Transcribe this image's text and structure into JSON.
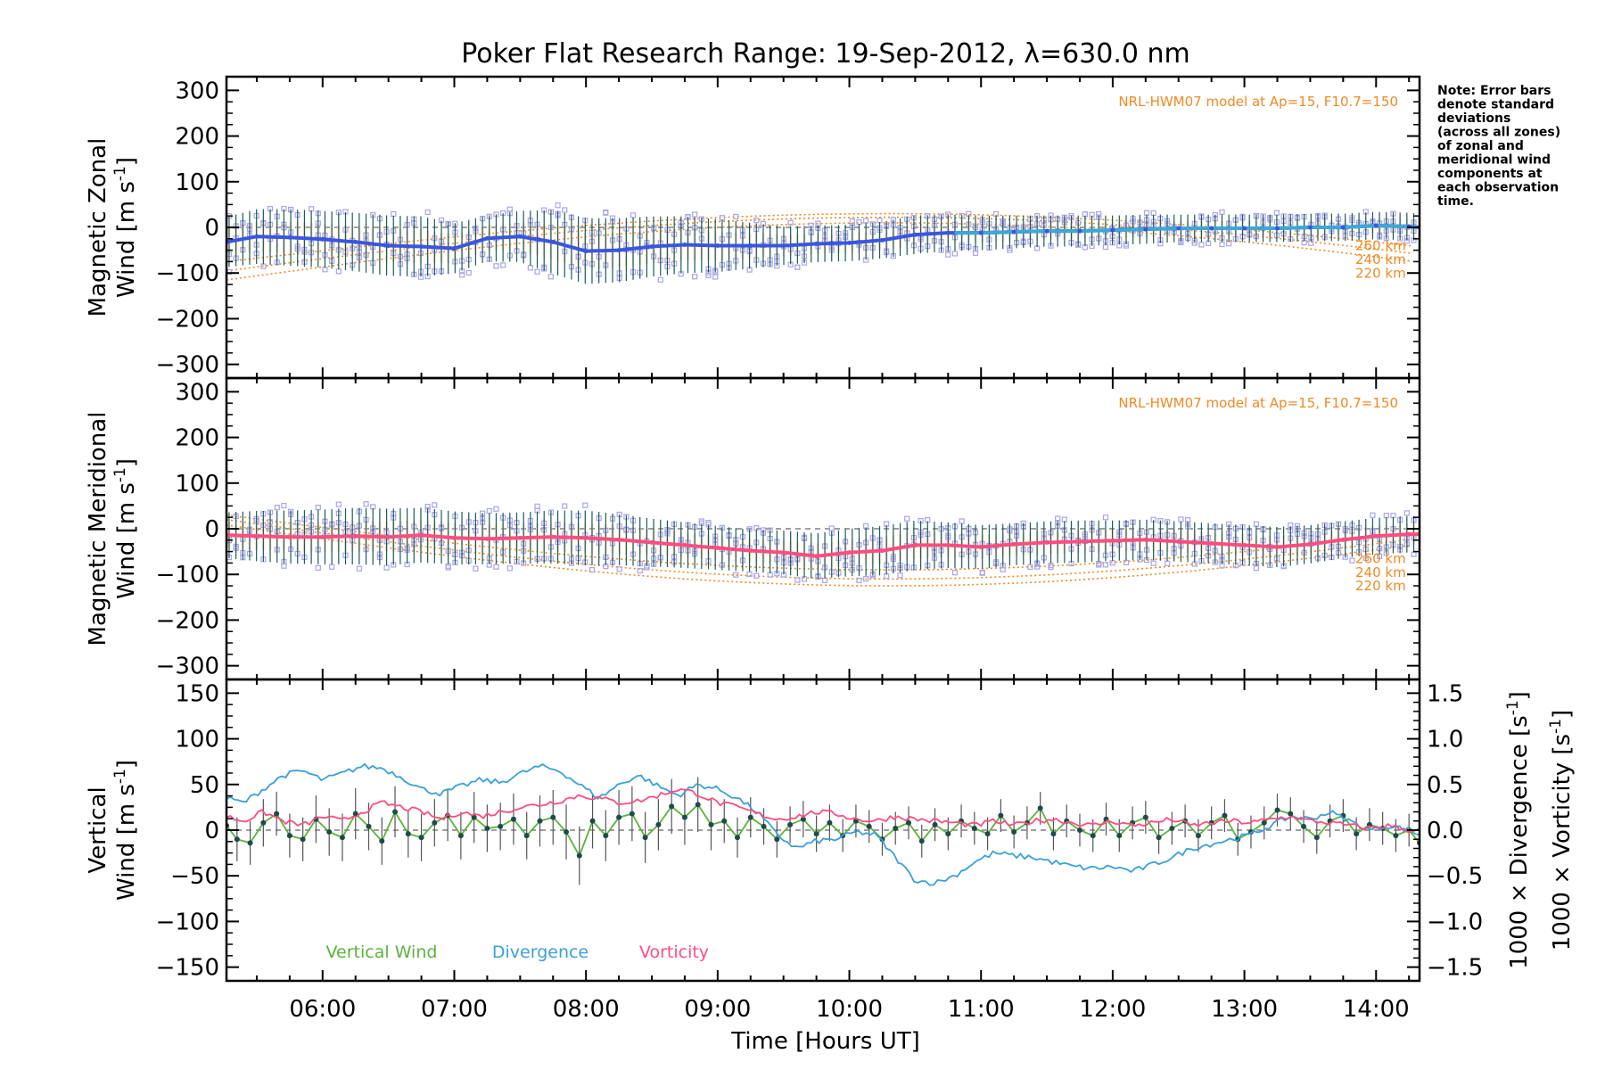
{
  "title": "Poker Flat Research Range: 19-Sep-2012, λ=630.0 nm",
  "note_lines": [
    "Note: Error bars",
    "denote standard",
    "deviations",
    "(across all zones)",
    "of zonal and",
    "meridional wind",
    "components at",
    "each observation",
    "time."
  ],
  "x_axis": {
    "label": "Time [Hours UT]",
    "range": [
      5.27,
      14.33
    ],
    "ticks": [
      {
        "v": 6,
        "label": "06:00"
      },
      {
        "v": 7,
        "label": "07:00"
      },
      {
        "v": 8,
        "label": "08:00"
      },
      {
        "v": 9,
        "label": "09:00"
      },
      {
        "v": 10,
        "label": "10:00"
      },
      {
        "v": 11,
        "label": "11:00"
      },
      {
        "v": 12,
        "label": "12:00"
      },
      {
        "v": 13,
        "label": "13:00"
      },
      {
        "v": 14,
        "label": "14:00"
      }
    ]
  },
  "colors": {
    "zonal": "#3a56e0",
    "zonal_late": "#3aa8d8",
    "meridional": "#ff4d80",
    "vertical": "#5ab43c",
    "divergence": "#3aa0d8",
    "vorticity": "#ff4d80",
    "model": "#f08a24",
    "scatter": "#a8a6e8",
    "errbar": "#1f5a5a"
  },
  "chart_data": [
    {
      "type": "line",
      "panel": "zonal",
      "ylabel_line1": "Magnetic Zonal",
      "ylabel_line2": "Wind [m s",
      "ylabel_sup": "-1",
      "ylabel_close": "]",
      "ylim": [
        -330,
        330
      ],
      "yticks": [
        300,
        200,
        100,
        0,
        -100,
        -200,
        -300
      ],
      "model_text": "NRL-HWM07 model at Ap=15, F10.7=150",
      "model_altitudes": [
        "260 km",
        "240 km",
        "220 km"
      ],
      "series": [
        {
          "x": [
            5.27,
            5.5,
            5.75,
            6.0,
            6.25,
            6.5,
            6.75,
            7.0,
            7.25,
            7.5,
            7.75,
            8.0,
            8.25,
            8.5,
            8.75,
            9.0,
            9.25,
            9.5,
            9.75,
            10.0,
            10.25,
            10.5,
            10.75,
            11.0,
            11.25,
            11.5,
            11.75,
            12.0,
            12.25,
            12.5,
            12.75,
            13.0,
            13.25,
            13.5,
            13.75,
            14.0,
            14.25,
            14.33
          ],
          "y": [
            -32,
            -20,
            -22,
            -26,
            -32,
            -40,
            -42,
            -46,
            -24,
            -20,
            -32,
            -52,
            -50,
            -42,
            -38,
            -40,
            -40,
            -40,
            -36,
            -34,
            -28,
            -16,
            -12,
            -12,
            -10,
            -8,
            -8,
            -6,
            -4,
            -2,
            -2,
            -2,
            -2,
            0,
            0,
            4,
            2,
            0
          ],
          "err": [
            55,
            60,
            62,
            62,
            64,
            66,
            66,
            55,
            50,
            56,
            70,
            72,
            70,
            66,
            62,
            58,
            50,
            42,
            40,
            40,
            40,
            42,
            40,
            38,
            36,
            34,
            34,
            32,
            32,
            30,
            30,
            30,
            30,
            30,
            30,
            30,
            30,
            30
          ]
        }
      ]
    },
    {
      "type": "line",
      "panel": "meridional",
      "ylabel_line1": "Magnetic Meridional",
      "ylabel_line2": "Wind [m s",
      "ylabel_sup": "-1",
      "ylabel_close": "]",
      "ylim": [
        -330,
        330
      ],
      "yticks": [
        300,
        200,
        100,
        0,
        -100,
        -200,
        -300
      ],
      "model_text": "NRL-HWM07 model at Ap=15, F10.7=150",
      "model_altitudes": [
        "260 km",
        "240 km",
        "220 km"
      ],
      "series": [
        {
          "x": [
            5.27,
            5.5,
            5.75,
            6.0,
            6.25,
            6.5,
            6.75,
            7.0,
            7.25,
            7.5,
            7.75,
            8.0,
            8.25,
            8.5,
            8.75,
            9.0,
            9.25,
            9.5,
            9.75,
            10.0,
            10.25,
            10.5,
            10.75,
            11.0,
            11.25,
            11.5,
            11.75,
            12.0,
            12.25,
            12.5,
            12.75,
            13.0,
            13.25,
            13.5,
            13.75,
            14.0,
            14.25,
            14.33
          ],
          "y": [
            -14,
            -16,
            -18,
            -18,
            -16,
            -18,
            -14,
            -20,
            -22,
            -20,
            -18,
            -20,
            -24,
            -30,
            -36,
            -42,
            -48,
            -52,
            -60,
            -52,
            -48,
            -36,
            -36,
            -40,
            -34,
            -30,
            -28,
            -26,
            -24,
            -28,
            -32,
            -36,
            -40,
            -34,
            -24,
            -16,
            -12,
            -12
          ],
          "err": [
            50,
            55,
            58,
            60,
            62,
            62,
            60,
            58,
            56,
            56,
            58,
            60,
            56,
            52,
            50,
            48,
            46,
            48,
            50,
            52,
            54,
            54,
            50,
            48,
            46,
            46,
            46,
            44,
            44,
            44,
            44,
            44,
            44,
            42,
            40,
            40,
            40,
            40
          ]
        }
      ]
    },
    {
      "type": "line",
      "panel": "vertical",
      "ylabel_line1": "Vertical",
      "ylabel_line2": "Wind [m s",
      "ylabel_sup": "-1",
      "ylabel_close": "]",
      "ylim": [
        -165,
        165
      ],
      "yticks": [
        150,
        100,
        50,
        0,
        -50,
        -100,
        -150
      ],
      "y2_ticks": [
        1.5,
        1.0,
        0.5,
        0.0,
        -0.5,
        -1.0,
        -1.5
      ],
      "y2_tick_labels": [
        "1.5",
        "1.0",
        "0.5",
        "0.0",
        "−0.5",
        "−1.0",
        "−1.5"
      ],
      "y2lim": [
        -1.65,
        1.65
      ],
      "y2label_div": "1000 × Divergence [s",
      "y2label_vor": "1000 × Vorticity [s",
      "y2label_sup": "-1",
      "y2label_close": "]",
      "legend": [
        "Vertical Wind",
        "Divergence",
        "Vorticity"
      ],
      "series": [
        {
          "name": "Vertical Wind",
          "x": [
            5.27,
            5.35,
            5.45,
            5.55,
            5.65,
            5.75,
            5.85,
            5.95,
            6.05,
            6.15,
            6.25,
            6.35,
            6.45,
            6.55,
            6.65,
            6.75,
            6.85,
            6.95,
            7.05,
            7.15,
            7.25,
            7.35,
            7.45,
            7.55,
            7.65,
            7.75,
            7.85,
            7.95,
            8.05,
            8.15,
            8.25,
            8.35,
            8.45,
            8.55,
            8.65,
            8.75,
            8.85,
            8.95,
            9.05,
            9.15,
            9.25,
            9.35,
            9.45,
            9.55,
            9.65,
            9.75,
            9.85,
            9.95,
            10.05,
            10.15,
            10.25,
            10.35,
            10.45,
            10.55,
            10.65,
            10.75,
            10.85,
            10.95,
            11.05,
            11.15,
            11.25,
            11.35,
            11.45,
            11.55,
            11.65,
            11.75,
            11.85,
            11.95,
            12.05,
            12.15,
            12.25,
            12.35,
            12.45,
            12.55,
            12.65,
            12.75,
            12.85,
            12.95,
            13.05,
            13.15,
            13.25,
            13.35,
            13.45,
            13.55,
            13.65,
            13.75,
            13.85,
            13.95,
            14.05,
            14.15,
            14.25,
            14.33
          ],
          "y": [
            5,
            -10,
            -14,
            8,
            18,
            -6,
            -10,
            12,
            -2,
            -8,
            18,
            4,
            -12,
            20,
            -4,
            -8,
            8,
            16,
            -6,
            14,
            2,
            4,
            12,
            -6,
            10,
            14,
            -2,
            -28,
            10,
            -6,
            14,
            18,
            -8,
            6,
            26,
            14,
            28,
            6,
            10,
            -8,
            14,
            4,
            -10,
            6,
            12,
            -4,
            8,
            -6,
            10,
            4,
            -10,
            2,
            8,
            -12,
            6,
            -4,
            10,
            2,
            -4,
            16,
            -2,
            8,
            24,
            -4,
            10,
            0,
            -6,
            12,
            -6,
            8,
            14,
            -8,
            2,
            10,
            -6,
            8,
            16,
            -10,
            -2,
            8,
            22,
            18,
            4,
            -8,
            10,
            16,
            -4,
            6,
            2,
            -6,
            0,
            -14
          ],
          "err": [
            22,
            24,
            24,
            26,
            24,
            24,
            24,
            26,
            26,
            26,
            28,
            26,
            26,
            28,
            26,
            26,
            26,
            28,
            26,
            28,
            26,
            26,
            28,
            26,
            28,
            30,
            30,
            32,
            30,
            28,
            30,
            30,
            28,
            28,
            30,
            30,
            30,
            28,
            24,
            22,
            22,
            20,
            20,
            20,
            20,
            20,
            20,
            18,
            18,
            18,
            18,
            18,
            18,
            18,
            18,
            18,
            18,
            18,
            18,
            18,
            18,
            18,
            18,
            18,
            18,
            18,
            18,
            18,
            18,
            18,
            18,
            18,
            18,
            18,
            18,
            18,
            18,
            18,
            18,
            18,
            18,
            18,
            18,
            18,
            18,
            18,
            18,
            18,
            18,
            18,
            18,
            18
          ]
        },
        {
          "name": "Divergence",
          "x": [
            5.27,
            5.4,
            5.55,
            5.7,
            5.85,
            6.0,
            6.15,
            6.3,
            6.45,
            6.6,
            6.75,
            6.9,
            7.05,
            7.2,
            7.35,
            7.5,
            7.65,
            7.8,
            7.95,
            8.1,
            8.25,
            8.4,
            8.55,
            8.7,
            8.85,
            9.0,
            9.15,
            9.3,
            9.45,
            9.6,
            9.75,
            9.9,
            10.05,
            10.2,
            10.35,
            10.5,
            10.65,
            10.8,
            10.95,
            11.1,
            11.25,
            11.4,
            11.55,
            11.7,
            11.85,
            12.0,
            12.15,
            12.3,
            12.45,
            12.6,
            12.75,
            12.9,
            13.05,
            13.2,
            13.35,
            13.5,
            13.65,
            13.8,
            13.95,
            14.1,
            14.25,
            14.33
          ],
          "y": [
            0.35,
            0.3,
            0.45,
            0.6,
            0.65,
            0.55,
            0.62,
            0.7,
            0.68,
            0.58,
            0.45,
            0.4,
            0.48,
            0.55,
            0.52,
            0.62,
            0.7,
            0.65,
            0.5,
            0.35,
            0.5,
            0.6,
            0.48,
            0.38,
            0.5,
            0.45,
            0.35,
            0.2,
            -0.05,
            -0.2,
            -0.12,
            -0.1,
            -0.02,
            -0.05,
            -0.3,
            -0.55,
            -0.58,
            -0.5,
            -0.35,
            -0.25,
            -0.28,
            -0.3,
            -0.35,
            -0.4,
            -0.42,
            -0.4,
            -0.45,
            -0.38,
            -0.3,
            -0.2,
            -0.15,
            -0.1,
            -0.05,
            0.05,
            0.15,
            0.12,
            0.2,
            0.1,
            0.0,
            0.05,
            0.0,
            -0.05
          ]
        },
        {
          "name": "Vorticity",
          "x": [
            5.27,
            5.4,
            5.55,
            5.7,
            5.85,
            6.0,
            6.15,
            6.3,
            6.45,
            6.6,
            6.75,
            6.9,
            7.05,
            7.2,
            7.35,
            7.5,
            7.65,
            7.8,
            7.95,
            8.1,
            8.25,
            8.4,
            8.55,
            8.7,
            8.85,
            9.0,
            9.15,
            9.3,
            9.45,
            9.6,
            9.75,
            9.9,
            10.05,
            10.2,
            10.35,
            10.5,
            10.65,
            10.8,
            10.95,
            11.1,
            11.25,
            11.4,
            11.55,
            11.7,
            11.85,
            12.0,
            12.15,
            12.3,
            12.45,
            12.6,
            12.75,
            12.9,
            13.05,
            13.2,
            13.35,
            13.5,
            13.65,
            13.8,
            13.95,
            14.1,
            14.25,
            14.33
          ],
          "y": [
            0.15,
            0.1,
            0.2,
            0.1,
            0.05,
            0.15,
            0.1,
            0.2,
            0.3,
            0.25,
            0.2,
            0.12,
            0.2,
            0.15,
            0.2,
            0.25,
            0.28,
            0.32,
            0.38,
            0.35,
            0.3,
            0.32,
            0.38,
            0.45,
            0.4,
            0.3,
            0.25,
            0.18,
            0.12,
            0.15,
            0.2,
            0.18,
            0.12,
            0.1,
            0.15,
            0.12,
            0.1,
            0.08,
            0.05,
            0.1,
            0.05,
            0.1,
            0.12,
            0.08,
            0.05,
            0.1,
            0.05,
            0.08,
            0.12,
            0.05,
            0.08,
            0.1,
            0.08,
            0.12,
            0.15,
            0.1,
            0.08,
            0.05,
            0.02,
            0.05,
            0.0,
            0.0
          ]
        }
      ]
    }
  ]
}
